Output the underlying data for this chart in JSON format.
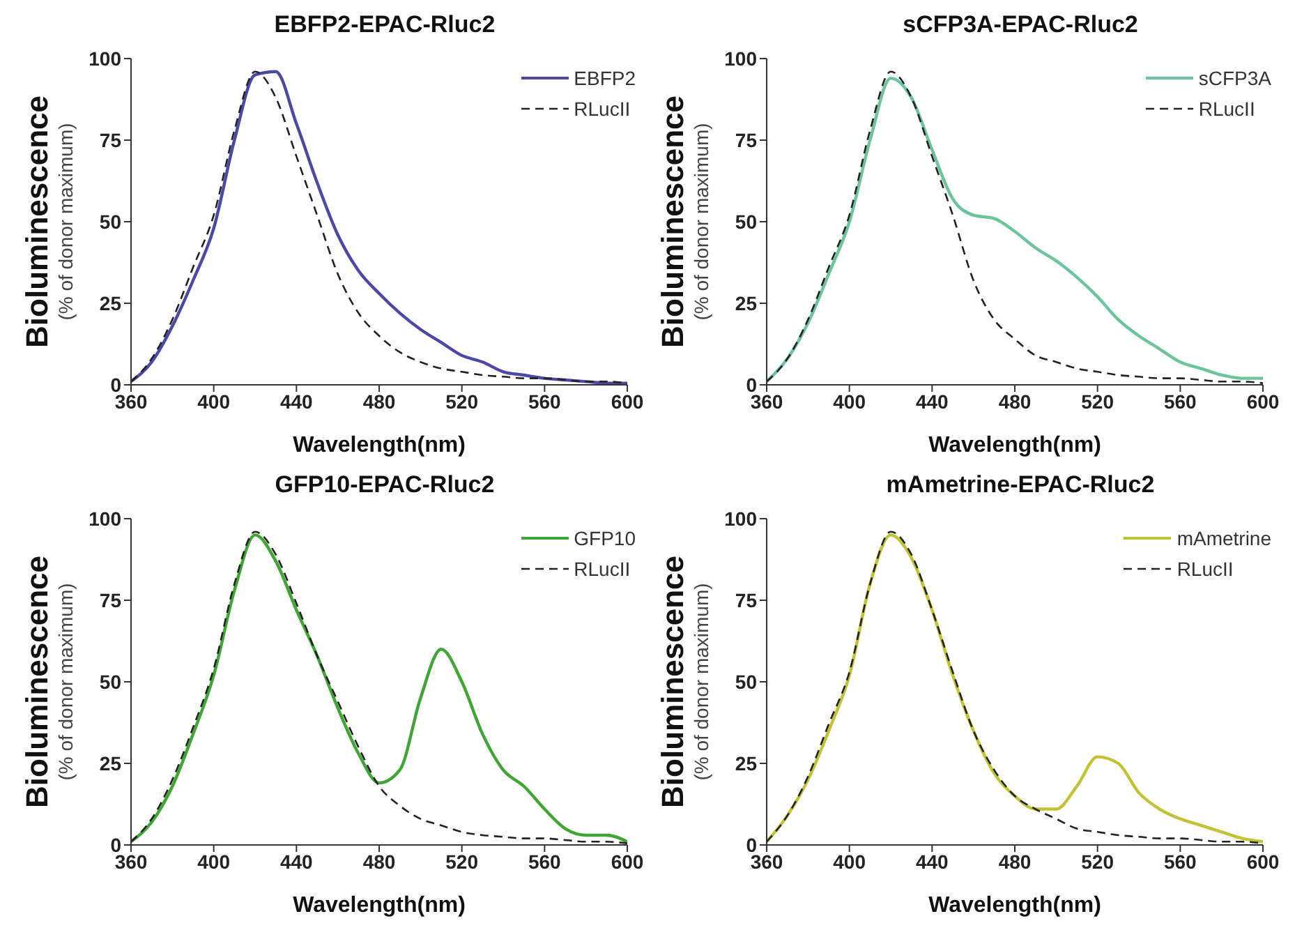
{
  "chart_data": [
    {
      "type": "line",
      "title": "EBFP2-EPAC-Rluc2",
      "xlabel": "Wavelength(nm)",
      "ylabel": "Bioluminescence\n(% of donor maximum)",
      "x": [
        360,
        370,
        380,
        390,
        400,
        410,
        420,
        430,
        440,
        450,
        460,
        470,
        480,
        490,
        500,
        510,
        520,
        530,
        540,
        550,
        560,
        570,
        580,
        590,
        600
      ],
      "xlim": [
        360,
        600
      ],
      "xticks": [
        360,
        400,
        440,
        480,
        520,
        560,
        600
      ],
      "ylim": [
        0,
        100
      ],
      "yticks": [
        0,
        25,
        50,
        75,
        100
      ],
      "grid": false,
      "legend": "top right",
      "series": [
        {
          "name": "EBFP2",
          "color": "#4b48a6",
          "line_style": "solid",
          "values": [
            1,
            7,
            18,
            32,
            48,
            75,
            95,
            96,
            80,
            62,
            46,
            35,
            28,
            22,
            17,
            13,
            9,
            7,
            4,
            3,
            2,
            1.5,
            1,
            0.5,
            0.5
          ]
        },
        {
          "name": "RLucII",
          "color": "#222222",
          "line_style": "dashed",
          "values": [
            1,
            8,
            20,
            36,
            52,
            78,
            96,
            88,
            70,
            52,
            34,
            22,
            15,
            10,
            7,
            5,
            4,
            3,
            2.5,
            2,
            2,
            1.5,
            1,
            1,
            0.5
          ]
        }
      ]
    },
    {
      "type": "line",
      "title": "sCFP3A-EPAC-Rluc2",
      "xlabel": "Wavelength(nm)",
      "ylabel": "Bioluminescence\n(% of donor maximum)",
      "x": [
        360,
        370,
        380,
        390,
        400,
        410,
        420,
        430,
        440,
        450,
        460,
        470,
        480,
        490,
        500,
        510,
        520,
        530,
        540,
        550,
        560,
        570,
        580,
        590,
        600
      ],
      "xlim": [
        360,
        600
      ],
      "xticks": [
        360,
        400,
        440,
        480,
        520,
        560,
        600
      ],
      "ylim": [
        0,
        100
      ],
      "yticks": [
        0,
        25,
        50,
        75,
        100
      ],
      "grid": false,
      "legend": "top right",
      "series": [
        {
          "name": "sCFP3A",
          "color": "#6cc49a",
          "line_style": "solid",
          "values": [
            1,
            8,
            19,
            34,
            50,
            75,
            94,
            88,
            72,
            57,
            52,
            51,
            47,
            42,
            38,
            33,
            27,
            20,
            15,
            11,
            7,
            5,
            3,
            2,
            2
          ]
        },
        {
          "name": "RLucII",
          "color": "#222222",
          "line_style": "dashed",
          "values": [
            1,
            8,
            20,
            36,
            52,
            78,
            96,
            88,
            70,
            52,
            32,
            20,
            14,
            9,
            7,
            5,
            4,
            3,
            2.5,
            2,
            2,
            1.5,
            1,
            1,
            0.5
          ]
        }
      ]
    },
    {
      "type": "line",
      "title": "GFP10-EPAC-Rluc2",
      "xlabel": "Wavelength(nm)",
      "ylabel": "Bioluminescence\n(% of donor maximum)",
      "x": [
        360,
        370,
        380,
        390,
        400,
        410,
        420,
        430,
        440,
        450,
        460,
        470,
        480,
        490,
        500,
        510,
        520,
        530,
        540,
        550,
        560,
        570,
        580,
        590,
        600
      ],
      "xlim": [
        360,
        600
      ],
      "xticks": [
        360,
        400,
        440,
        480,
        520,
        560,
        600
      ],
      "ylim": [
        0,
        100
      ],
      "yticks": [
        0,
        25,
        50,
        75,
        100
      ],
      "grid": false,
      "legend": "top right",
      "series": [
        {
          "name": "GFP10",
          "color": "#3fa535",
          "line_style": "solid",
          "values": [
            1,
            7,
            18,
            34,
            52,
            78,
            95,
            87,
            72,
            58,
            42,
            28,
            19,
            23,
            45,
            60,
            50,
            34,
            23,
            18,
            11,
            5,
            3,
            3,
            1
          ]
        },
        {
          "name": "RLucII",
          "color": "#222222",
          "line_style": "dashed",
          "values": [
            1,
            8,
            20,
            36,
            54,
            80,
            96,
            89,
            74,
            58,
            44,
            30,
            18,
            12,
            8,
            6,
            4,
            3,
            2.5,
            2,
            2,
            1.5,
            1,
            1,
            0.5
          ]
        }
      ]
    },
    {
      "type": "line",
      "title": "mAmetrine-EPAC-Rluc2",
      "xlabel": "Wavelength(nm)",
      "ylabel": "Bioluminescence\n(% of donor maximum)",
      "x": [
        360,
        370,
        380,
        390,
        400,
        410,
        420,
        430,
        440,
        450,
        460,
        470,
        480,
        490,
        500,
        510,
        520,
        530,
        540,
        550,
        560,
        570,
        580,
        590,
        600
      ],
      "xlim": [
        360,
        600
      ],
      "xticks": [
        360,
        400,
        440,
        480,
        520,
        560,
        600
      ],
      "ylim": [
        0,
        100
      ],
      "yticks": [
        0,
        25,
        50,
        75,
        100
      ],
      "grid": false,
      "legend": "top right",
      "series": [
        {
          "name": "mAmetrine",
          "color": "#c2c234",
          "line_style": "solid",
          "values": [
            1,
            9,
            20,
            35,
            52,
            80,
            95,
            88,
            72,
            52,
            35,
            22,
            15,
            11,
            11,
            18,
            27,
            25,
            16,
            11,
            8,
            6,
            4,
            2,
            1
          ]
        },
        {
          "name": "RLucII",
          "color": "#222222",
          "line_style": "dashed",
          "values": [
            1,
            9,
            21,
            37,
            53,
            80,
            96,
            89,
            72,
            53,
            35,
            23,
            15,
            11,
            8,
            5,
            4,
            3,
            2.5,
            2,
            2,
            1.5,
            1,
            1,
            0.5
          ]
        }
      ]
    }
  ]
}
